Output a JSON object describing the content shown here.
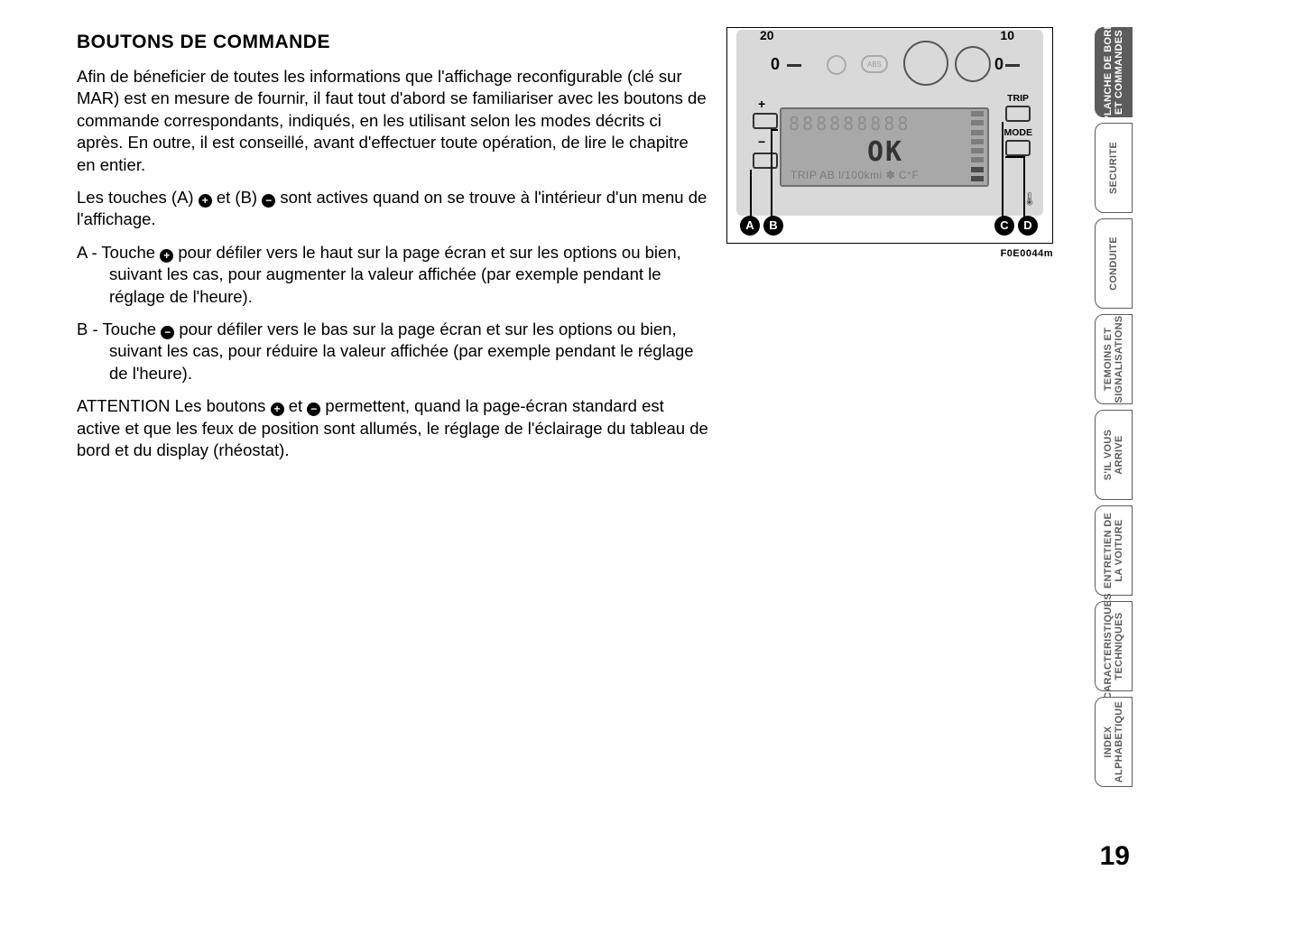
{
  "title": "BOUTONS DE COMMANDE",
  "para1": "Afin de béneficier de toutes les informations que l'affichage reconfigurable (clé sur MAR) est en mesure de fournir, il faut tout d'abord se familiariser avec les boutons de commande correspondants, indiqués, en les utilisant selon les modes décrits ci après. En outre, il est conseillé, avant d'effectuer toute opération, de lire le chapitre en entier.",
  "para2_a": "Les touches (A) ",
  "para2_b": " et (B) ",
  "para2_c": " sont actives quand on se trouve à l'intérieur d'un menu de l'affichage.",
  "itemA_a": "A - Touche",
  "itemA_b": " pour défiler vers le haut sur la page écran et sur les options ou bien, suivant les cas, pour augmenter la valeur affichée (par exemple pendant le réglage de l'heure).",
  "itemB_a": "B - Touche",
  "itemB_b": " pour défiler vers le bas sur la page écran et sur les options ou bien, suivant les cas, pour réduire la valeur affichée (par exemple pendant le réglage de l'heure).",
  "attn_a": "ATTENTION Les boutons ",
  "attn_b": " et ",
  "attn_c": " permettent, quand la page-écran standard est active et que les feux de position sont allumés, le réglage de l'éclairage du tableau de bord et du display (rhéostat).",
  "icon_plus": "+",
  "icon_minus": "−",
  "figure": {
    "caption": "F0E0044m",
    "markers": [
      "A",
      "B",
      "C",
      "D"
    ],
    "trip_label": "TRIP",
    "mode_label": "MODE",
    "lcd_ok": "OK",
    "lcd_bottom": "TRIP AB l/100kmi  ✽  C°F",
    "zero_l": "0",
    "zero_r": "0",
    "tick_l": "20",
    "tick_r": "10",
    "plus": "+",
    "minus": "−"
  },
  "tabs": [
    "PLANCHE DE BORD\nET COMMANDES",
    "SECURITE",
    "CONDUITE",
    "TEMOINS ET\nSIGNALISATIONS",
    "S'IL VOUS\nARRIVE",
    "ENTRETIEN DE\nLA VOITURE",
    "CARACTERISTIQUES\nTECHNIQUES",
    "INDEX\nALPHABETIQUE"
  ],
  "page_number": "19"
}
